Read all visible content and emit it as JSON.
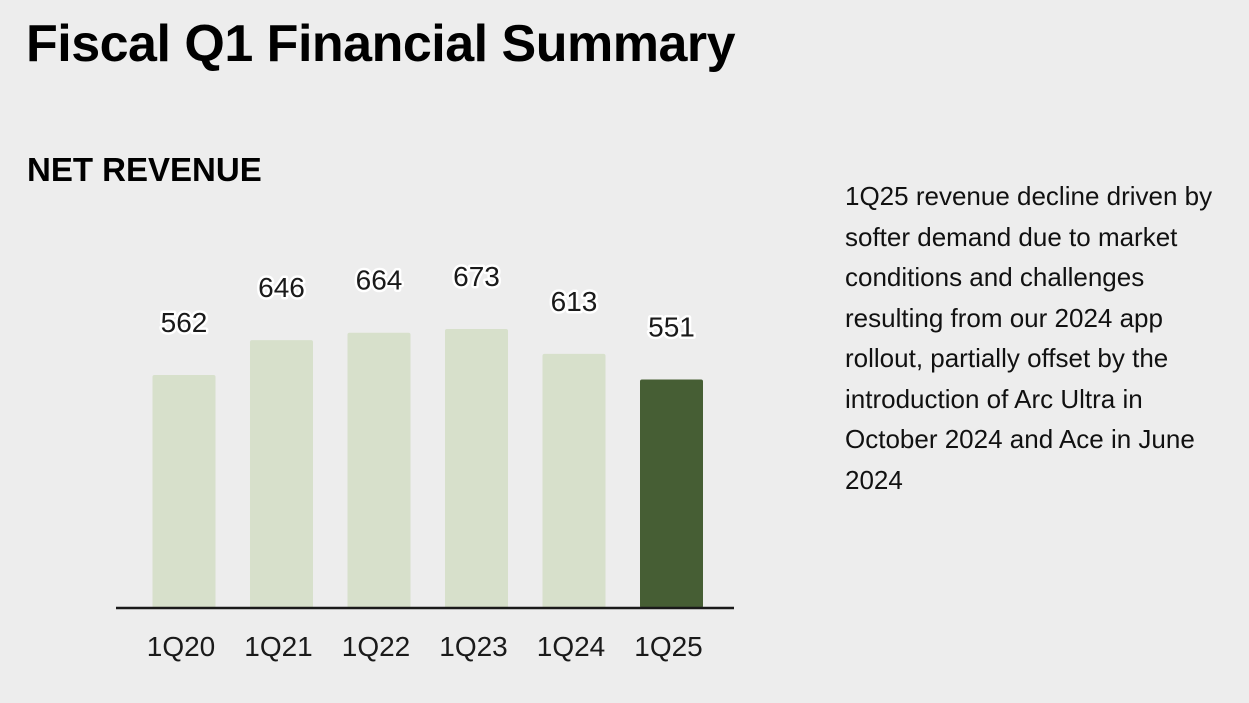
{
  "page": {
    "title": "Fiscal Q1 Financial Summary",
    "section_title": "NET REVENUE",
    "commentary": "1Q25 revenue decline driven by softer demand due to market conditions and challenges resulting from our 2024 app rollout, partially offset by the introduction of Arc Ultra in October 2024 and Ace in June 2024"
  },
  "colors": {
    "background": "#ededed",
    "prior_bar": "#d7e0cb",
    "highlight_bar": "#465e34",
    "axis": "#1a1a1a"
  },
  "chart_data": {
    "type": "bar",
    "title": "NET REVENUE",
    "xlabel": "",
    "ylabel": "",
    "categories": [
      "1Q20",
      "1Q21",
      "1Q22",
      "1Q23",
      "1Q24",
      "1Q25"
    ],
    "values": [
      562,
      646,
      664,
      673,
      613,
      551
    ],
    "data_labels": [
      "562",
      "646",
      "664",
      "673",
      "613",
      "551"
    ],
    "highlight_index": 5,
    "ylim": [
      0,
      800
    ],
    "grid": false,
    "legend": "none"
  }
}
